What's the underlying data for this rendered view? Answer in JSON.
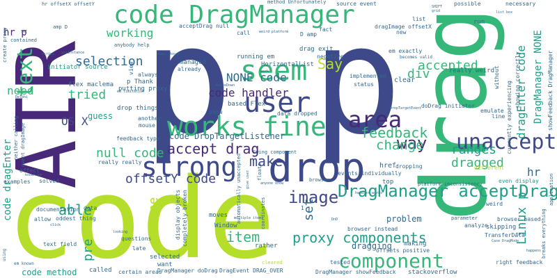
{
  "palette": {
    "lime": "#b5de2b",
    "green": "#35b779",
    "teal": "#1f9e89",
    "blue": "#31688e",
    "navy": "#3e4989",
    "purple": "#482878",
    "dark": "#440154"
  },
  "words": {
    "code_big": "code",
    "p_big": "p",
    "drag_big": "drag",
    "air": "AIR",
    "code_dragmanager": "code DragManager",
    "user": "user",
    "drop": "drop",
    "strong": "strong",
    "works_fine": "works fine",
    "seem": "seem",
    "area": "area",
    "component": "component",
    "unaccept": "unaccept",
    "dragmanager_acceptdrag": "DragManager acceptDrag",
    "text": "text",
    "way": "way",
    "feedback": "feedback",
    "image": "image",
    "proxy_components": "proxy components",
    "accept_drag": "accept drag",
    "change": "change",
    "make": "make",
    "item": "item",
    "offsety_code": "offsetY code",
    "null_code": "null code",
    "selection": "selection",
    "tried": "tried",
    "able": "able",
    "code_handler": "code handler",
    "none_code": "NONE code",
    "say": "Say",
    "accepted": "accepted",
    "div": "div",
    "ranges": "ranges",
    "dragged": "dragged",
    "linux_p": "Linux p",
    "set": "set",
    "pre": "pre",
    "one": "one",
    "problem": "problem",
    "dragging": "dragging",
    "need": "need",
    "os_x": "OS X",
    "working": "working",
    "guess": "guess",
    "code_droptargetlistener": "code DropTargetListener",
    "dragenter_code": "dragEnter code",
    "dragmanager_none": "DragManager NONE",
    "dragmanager_acceptdrag_small": "DragManager acceptDrag",
    "code_method": "code method",
    "hr": "hr",
    "hr_p": "hr p",
    "code_dragenter": "code dragEnter",
    "p_thank": "p Thank",
    "flex_maclema": "flex maclema",
    "initiator_source": "initiator source",
    "putting_proxy": "putting proxy",
    "drop_things": "drop things",
    "horizontallist": "HorizontalList",
    "running_em": "running em",
    "drag_exit": "drag exit",
    "clear": "clear",
    "really_weird": "really weird",
    "even_display": "even display",
    "browser_based": "browser based",
    "skipping": "skipping",
    "stackoverflow": "stackoverflow",
    "right_feedback": "right feedback",
    "showfeedback_dragmanager": "showFeedback DragManager",
    "dragmanager_showfeedback": "DragManager showFeedback",
    "dragmanager_dodrag": "DragManager doDrag",
    "dragevent_drag_over": "DragEvent DRAG_OVER",
    "certain_areas": "certain areas",
    "called": "called",
    "want": "want",
    "selected": "selected",
    "moves": "moves",
    "window": "Window",
    "rather": "rather",
    "cleared": "cleared",
    "tested": "tested",
    "making": "making",
    "offsets_positive": "offsets positive",
    "browser_instead": "browser instead",
    "href": "href",
    "top": "top",
    "weird": "weird",
    "documentation": "documentation",
    "text_field": "text field",
    "examples": "examples",
    "effect": "effect",
    "solved": "solved",
    "really_really": "really really",
    "feedback_type": "feedback type",
    "mouse": "mouse",
    "another": "another",
    "show_word": "show",
    "based_flex": "based Flex",
    "data_dropped": "data dropped",
    "always": "always",
    "view": "view",
    "managed": "managed",
    "already": "already",
    "status": "status",
    "implemented": "implemented",
    "negative": "negative",
    "call": "call",
    "acceptdrag_null": "acceptDrag null",
    "anybody_help": "anybody help",
    "source_event": "source event",
    "possible": "possible",
    "necessary": "necessary",
    "list": "list",
    "run": "run",
    "new_word": "new",
    "fact": "fact",
    "dragimage_offsetx": "dragImage offsetX",
    "em_exactly": "em exactly",
    "becomes_valid": "becomes valid",
    "showing_correctly": "showing correctly",
    "currently_experiencing": "currently experiencing",
    "without": "without",
    "emulate": "emulate",
    "platform_inconsistency": "platform inconsistency",
    "dodrag_initiator": "doDrag initiator",
    "events_individually": "events individually",
    "automatically_unaccepted": "automatically unaccepted",
    "display_objects": "display objects",
    "completely_broken": "completely broken",
    "questions": "questions",
    "late": "late",
    "allow": "allow",
    "oddest_thing": "oddest thing",
    "data": "data",
    "method_unfortunately": "method Unfortunately",
    "hr_offsetx_offsety": "hr offsetX offsetY",
    "create_proxy": "create proxy",
    "neither_calling": "neither calling",
    "event_dragimage": "event dragImage",
    "amp_d": "amp D",
    "d_amp": "D amp",
    "contained": "contained",
    "swing_component": "Swing component",
    "floats": "floats",
    "dropping": "dropping",
    "different": "different",
    "application": "application",
    "breaks_everything": "breaks everything",
    "line": "line",
    "parameter": "parameter",
    "analyze": "analyze",
    "transferdata": "TransferData",
    "happens": "happens",
    "em_known": "em known",
    "using": "using",
    "getinstance": "getInstance",
    "known_em": "known em",
    "scripi": "scripi",
    "smt": "SMT",
    "dnd": "DnD",
    "delphi": "Delphi",
    "em_limitation": "em limitation",
    "droptargetevent": "DropTargetEvent",
    "weird_platform": "weird platform",
    "even_though": "even though",
    "work": "work",
    "shift": "SHIFT",
    "grid": "grid",
    "list_box": "list box",
    "anyone_know": "anyone know",
    "give_user": "give user",
    "handler_works": "handler works",
    "multiple_items": "multiple items",
    "looking": "looking",
    "click": "click",
    "coordinates": "coordinates",
    "browser": "browser",
    "case_dragmode": "Case DragMode",
    "mousedown": "mouseDown",
    "one_num": "1"
  }
}
